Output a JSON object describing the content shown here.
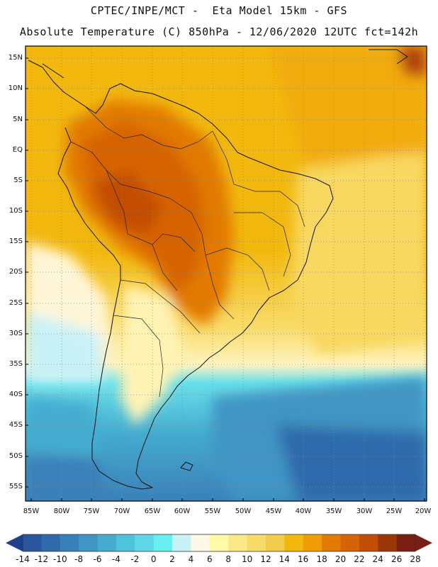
{
  "title_line1": "CPTEC/INPE/MCT -  Eta Model 15km - GFS",
  "title_line2": "Absolute Temperature (C) 850hPa - 12/06/2020 12UTC fct=142h",
  "map": {
    "region": "South America",
    "variable": "Absolute Temperature (C) 850hPa",
    "lat_labels": [
      "15N",
      "10N",
      "5N",
      "EQ",
      "5S",
      "10S",
      "15S",
      "20S",
      "25S",
      "30S",
      "35S",
      "40S",
      "45S",
      "50S",
      "55S"
    ],
    "lon_labels": [
      "85W",
      "80W",
      "75W",
      "70W",
      "65W",
      "60W",
      "55W",
      "50W",
      "45W",
      "40W",
      "35W",
      "30W",
      "25W",
      "20W"
    ]
  },
  "colorbar": {
    "labels": [
      "-14",
      "-12",
      "-10",
      "-8",
      "-6",
      "-4",
      "-2",
      "0",
      "2",
      "4",
      "6",
      "8",
      "10",
      "12",
      "14",
      "16",
      "18",
      "20",
      "22",
      "24",
      "26",
      "28"
    ],
    "colors": [
      "#1f3f8f",
      "#2a56a0",
      "#2f6aac",
      "#3a80b8",
      "#3f95c4",
      "#45acd0",
      "#4fc2dc",
      "#5fd7e6",
      "#68f0f0",
      "#c9f2f8",
      "#fff8e6",
      "#fff9a8",
      "#fbe888",
      "#f8dc6a",
      "#f4cc4c",
      "#f2b80e",
      "#ef9c06",
      "#e27a02",
      "#d66404",
      "#c24e06",
      "#9a3808",
      "#7a1d12"
    ]
  }
}
